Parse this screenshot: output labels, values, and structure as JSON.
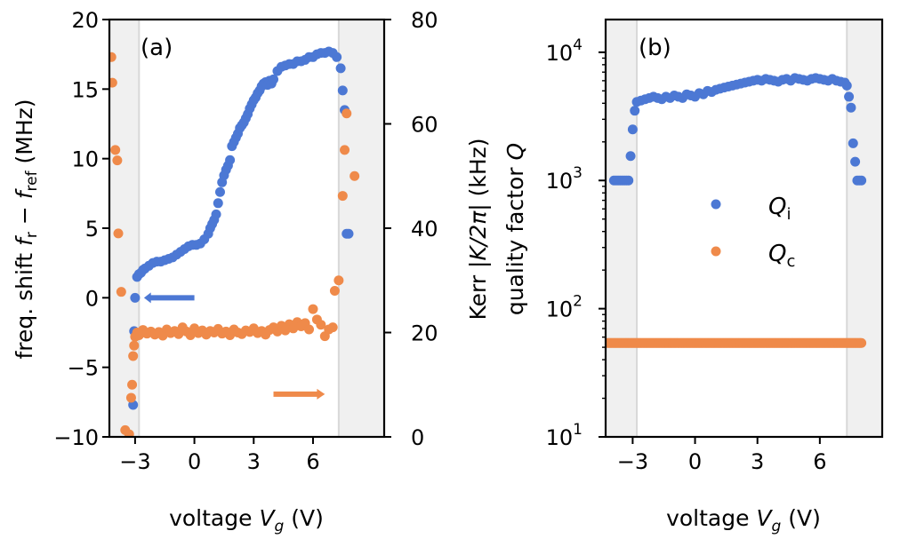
{
  "colors": {
    "blue": "#4c78d4",
    "orange": "#ef8a4a",
    "shade": "#f0f0f0",
    "vline": "#d8d8d8"
  },
  "chart_data": [
    {
      "panel": "(a)",
      "type": "scatter",
      "xlabel": "voltage V_g (V)",
      "ylabel": "freq. shift f_r − f_ref (MHz)",
      "y2label": "Kerr |K/2π| (kHz)",
      "xlim": [
        -4.3,
        9.6
      ],
      "ylim": [
        -10,
        20
      ],
      "y2lim": [
        0,
        80
      ],
      "xticks": [
        -3,
        0,
        3,
        6
      ],
      "yticks": [
        -10,
        -5,
        0,
        5,
        10,
        15,
        20
      ],
      "y2ticks": [
        0,
        20,
        40,
        60,
        80
      ],
      "shaded_regions": [
        [
          -4.3,
          -2.8
        ],
        [
          7.3,
          9.6
        ]
      ],
      "annotations": [
        {
          "arrow": "left",
          "series": "freq. shift",
          "axis": "left",
          "at_x": 0
        },
        {
          "arrow": "right",
          "series": "Kerr",
          "axis": "right",
          "at_x": 5.4
        }
      ],
      "series": [
        {
          "quantity": "freq. shift",
          "axis": "left",
          "color": "blue",
          "x": [
            -3.1,
            -3.05,
            -3.0,
            -2.9,
            -2.8,
            -2.7,
            -2.6,
            -2.5,
            -2.3,
            -2.1,
            -1.9,
            -1.7,
            -1.5,
            -1.3,
            -1.1,
            -0.9,
            -0.7,
            -0.5,
            -0.3,
            -0.1,
            0.1,
            0.3,
            0.5,
            0.7,
            0.8,
            0.9,
            1.0,
            1.1,
            1.2,
            1.3,
            1.4,
            1.5,
            1.6,
            1.7,
            1.8,
            1.9,
            2.0,
            2.1,
            2.2,
            2.3,
            2.4,
            2.5,
            2.6,
            2.7,
            2.8,
            2.9,
            3.0,
            3.1,
            3.2,
            3.3,
            3.4,
            3.5,
            3.6,
            3.7,
            3.8,
            3.9,
            4.0,
            4.2,
            4.4,
            4.6,
            4.8,
            5.0,
            5.2,
            5.4,
            5.6,
            5.8,
            6.0,
            6.2,
            6.4,
            6.6,
            6.8,
            7.0,
            7.2,
            7.4,
            7.5,
            7.6,
            7.7,
            7.8
          ],
          "y": [
            -7.7,
            -2.4,
            0.0,
            1.5,
            1.7,
            1.8,
            2.0,
            2.1,
            2.3,
            2.5,
            2.6,
            2.6,
            2.7,
            2.8,
            2.9,
            3.1,
            3.3,
            3.5,
            3.7,
            3.8,
            3.8,
            3.9,
            4.2,
            4.6,
            5.0,
            5.3,
            5.6,
            6.0,
            6.8,
            7.6,
            8.3,
            8.8,
            9.2,
            9.5,
            9.9,
            10.9,
            11.2,
            11.5,
            11.8,
            12.2,
            12.4,
            12.6,
            12.9,
            13.2,
            13.6,
            13.9,
            14.2,
            14.4,
            14.7,
            14.9,
            15.2,
            15.4,
            15.5,
            15.3,
            15.6,
            15.4,
            15.7,
            16.3,
            16.6,
            16.7,
            16.8,
            16.8,
            17.0,
            17.0,
            17.1,
            17.3,
            17.3,
            17.5,
            17.6,
            17.6,
            17.7,
            17.6,
            17.3,
            16.5,
            14.9,
            13.5,
            4.6,
            4.6
          ]
        },
        {
          "quantity": "Kerr",
          "axis": "right",
          "color": "orange",
          "x": [
            -4.2,
            -4.15,
            -4.0,
            -3.9,
            -3.85,
            -3.7,
            -3.5,
            -3.3,
            -3.2,
            -3.15,
            -3.1,
            -3.05,
            -3.0,
            -2.9,
            -2.8,
            -2.6,
            -2.4,
            -2.2,
            -2.0,
            -1.8,
            -1.6,
            -1.4,
            -1.2,
            -1.0,
            -0.8,
            -0.6,
            -0.4,
            -0.2,
            0.0,
            0.2,
            0.4,
            0.6,
            0.8,
            1.0,
            1.2,
            1.4,
            1.6,
            1.8,
            2.0,
            2.2,
            2.4,
            2.6,
            2.8,
            3.0,
            3.2,
            3.4,
            3.6,
            3.8,
            4.0,
            4.2,
            4.4,
            4.6,
            4.8,
            5.0,
            5.2,
            5.4,
            5.6,
            5.8,
            6.0,
            6.2,
            6.4,
            6.6,
            6.8,
            7.0,
            7.1,
            7.3,
            7.5,
            7.6,
            7.7,
            8.1
          ],
          "y": [
            72.8,
            67.9,
            55.0,
            53.0,
            39.0,
            27.8,
            1.3,
            0.5,
            7.5,
            10.0,
            15.5,
            17.5,
            19.2,
            20.0,
            19.5,
            20.5,
            19.8,
            20.2,
            19.6,
            20.1,
            19.4,
            20.6,
            19.9,
            20.3,
            19.7,
            21.0,
            20.2,
            19.5,
            20.8,
            19.9,
            20.4,
            19.6,
            20.3,
            20.0,
            20.7,
            19.8,
            20.2,
            19.5,
            20.6,
            20.0,
            19.7,
            20.4,
            20.1,
            20.8,
            19.9,
            20.3,
            19.6,
            20.5,
            21.0,
            20.2,
            21.3,
            20.4,
            21.6,
            20.8,
            22.0,
            21.2,
            21.8,
            20.6,
            24.5,
            22.5,
            21.5,
            19.3,
            20.6,
            21.0,
            28.0,
            30.0,
            46.2,
            55.0,
            62.0,
            50.0
          ]
        }
      ]
    },
    {
      "panel": "(b)",
      "type": "scatter",
      "xlabel": "voltage V_g (V)",
      "ylabel": "quality factor Q",
      "yscale": "log",
      "xlim": [
        -4.3,
        9.0
      ],
      "ylim": [
        10,
        18000
      ],
      "xticks": [
        -3,
        0,
        3,
        6
      ],
      "yticks": [
        10,
        100,
        1000,
        10000
      ],
      "shaded_regions": [
        [
          -4.3,
          -2.8
        ],
        [
          7.3,
          9.0
        ]
      ],
      "legend": {
        "placement": "center-right",
        "entries": [
          "Q_i",
          "Q_c"
        ]
      },
      "series": [
        {
          "name": "Q_i",
          "color": "blue",
          "x": [
            -3.9,
            -3.8,
            -3.7,
            -3.6,
            -3.5,
            -3.4,
            -3.3,
            -3.2,
            -3.1,
            -3.0,
            -2.9,
            -2.8,
            -2.6,
            -2.4,
            -2.2,
            -2.0,
            -1.8,
            -1.6,
            -1.4,
            -1.2,
            -1.0,
            -0.8,
            -0.6,
            -0.4,
            -0.2,
            0.0,
            0.2,
            0.4,
            0.6,
            0.8,
            1.0,
            1.2,
            1.4,
            1.6,
            1.8,
            2.0,
            2.2,
            2.4,
            2.6,
            2.8,
            3.0,
            3.2,
            3.4,
            3.6,
            3.8,
            4.0,
            4.2,
            4.4,
            4.6,
            4.8,
            5.0,
            5.2,
            5.4,
            5.6,
            5.8,
            6.0,
            6.2,
            6.4,
            6.6,
            6.8,
            7.0,
            7.2,
            7.3,
            7.4,
            7.5,
            7.6,
            7.7,
            7.8,
            7.9,
            8.0
          ],
          "y": [
            1000,
            1000,
            1000,
            1000,
            1000,
            1000,
            1000,
            1000,
            1550,
            2500,
            3500,
            4100,
            4200,
            4300,
            4400,
            4500,
            4400,
            4300,
            4500,
            4400,
            4600,
            4500,
            4400,
            4700,
            4600,
            4500,
            4800,
            4700,
            5000,
            4900,
            5100,
            5200,
            5300,
            5400,
            5500,
            5600,
            5700,
            5800,
            5900,
            6000,
            6100,
            6000,
            6200,
            6100,
            6000,
            5900,
            6100,
            6200,
            6000,
            6300,
            6200,
            6100,
            6000,
            6200,
            6300,
            6200,
            6100,
            6000,
            6200,
            6000,
            5900,
            5800,
            5500,
            4500,
            3700,
            1950,
            1400,
            1000,
            1000,
            1000
          ]
        },
        {
          "name": "Q_c",
          "color": "orange",
          "x_range": [
            -4.2,
            8.0
          ],
          "y_const": 54
        }
      ]
    }
  ],
  "text": {
    "a": {
      "panel_label": "(a)",
      "xticks": [
        "−3",
        "0",
        "3",
        "6"
      ],
      "yticks": [
        "−10",
        "−5",
        "0",
        "5",
        "10",
        "15",
        "20"
      ],
      "y2ticks": [
        "0",
        "20",
        "40",
        "60",
        "80"
      ]
    },
    "b": {
      "panel_label": "(b)",
      "xticks": [
        "−3",
        "0",
        "3",
        "6"
      ],
      "ytick_base": "10",
      "ytick_exps": [
        "1",
        "2",
        "3",
        "4"
      ],
      "legend_qi": "Q",
      "legend_qi_sub": "i",
      "legend_qc": "Q",
      "legend_qc_sub": "c"
    },
    "xlabel_pre": "voltage ",
    "xlabel_var": "V",
    "xlabel_sub": "g",
    "xlabel_post": " (V)",
    "ylabel_a_pre": "freq. shift ",
    "ylabel_a_f1": "f",
    "ylabel_a_s1": "r",
    "ylabel_a_mid": " − ",
    "ylabel_a_f2": "f",
    "ylabel_a_s2": "ref",
    "ylabel_a_post": " (MHz)",
    "y2label_pre": "Kerr |",
    "y2label_var": "K/2π",
    "y2label_post": "| (kHz)",
    "ylabel_b_pre": "quality factor ",
    "ylabel_b_var": "Q"
  }
}
